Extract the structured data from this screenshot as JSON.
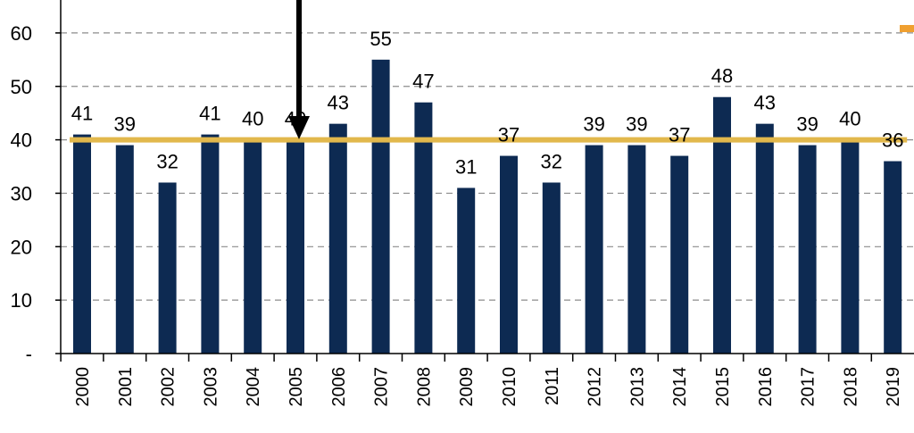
{
  "chart_data": {
    "type": "bar",
    "categories": [
      "2000",
      "2001",
      "2002",
      "2003",
      "2004",
      "2005",
      "2006",
      "2007",
      "2008",
      "2009",
      "2010",
      "2011",
      "2012",
      "2013",
      "2014",
      "2015",
      "2016",
      "2017",
      "2018",
      "2019"
    ],
    "values": [
      41,
      39,
      32,
      41,
      40,
      40,
      43,
      55,
      47,
      31,
      37,
      32,
      39,
      39,
      37,
      48,
      43,
      39,
      40,
      36
    ],
    "data_labels": [
      "41",
      "39",
      "32",
      "41",
      "40",
      "40",
      "43",
      "55",
      "47",
      "31",
      "37",
      "32",
      "39",
      "39",
      "37",
      "48",
      "43",
      "39",
      "40",
      "36"
    ],
    "ylim": [
      0,
      65
    ],
    "yticks": [
      0,
      10,
      20,
      30,
      40,
      50,
      60
    ],
    "ytick_labels": [
      "-",
      "10",
      "20",
      "30",
      "40",
      "50",
      "60"
    ],
    "grid": "horizontal dashed",
    "bar_color": "#0d2a52",
    "reference_line": {
      "value": 40,
      "color": "#e2b84c"
    },
    "arrow": {
      "category": "2005",
      "color": "#000000"
    },
    "legend_marker_color": "#f0a030",
    "title": "",
    "xlabel": "",
    "ylabel": ""
  }
}
